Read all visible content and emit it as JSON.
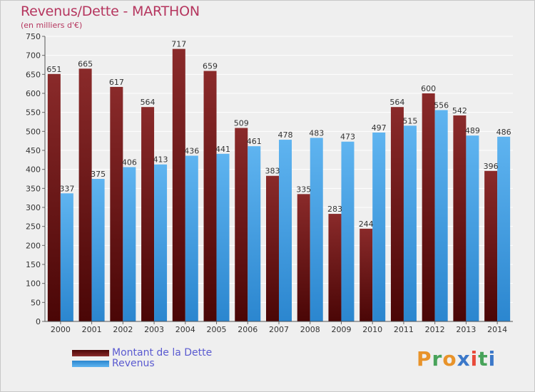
{
  "header": {
    "title": "Revenus/Dette - MARTHON",
    "subtitle": "(en milliers d'€)"
  },
  "legend": {
    "items": [
      {
        "label": "Montant de la Dette",
        "color": "#7b1515"
      },
      {
        "label": "Revenus",
        "color": "#3d9ee6"
      }
    ]
  },
  "logo": {
    "letters": [
      "P",
      "r",
      "o",
      "x",
      "i",
      "t",
      "i"
    ],
    "colors": [
      "#e8932a",
      "#48a35a",
      "#e8932a",
      "#3b78c9",
      "#e84a3a",
      "#48a35a",
      "#3b78c9"
    ]
  },
  "colors": {
    "dette": "#7b1515",
    "revenus": "#3d9ee6",
    "title": "#b5355e",
    "background": "#efefef"
  },
  "chart_data": {
    "type": "bar",
    "title": "Revenus/Dette - MARTHON",
    "subtitle": "(en milliers d'€)",
    "categories": [
      "2000",
      "2001",
      "2002",
      "2003",
      "2004",
      "2005",
      "2006",
      "2007",
      "2008",
      "2009",
      "2010",
      "2011",
      "2012",
      "2013",
      "2014"
    ],
    "series": [
      {
        "name": "Montant de la Dette",
        "values": [
          651,
          665,
          617,
          564,
          717,
          659,
          509,
          383,
          335,
          283,
          244,
          564,
          600,
          542,
          396
        ]
      },
      {
        "name": "Revenus",
        "values": [
          337,
          375,
          406,
          413,
          436,
          441,
          461,
          478,
          483,
          473,
          497,
          515,
          556,
          489,
          486
        ]
      }
    ],
    "ylim": [
      0,
      750
    ],
    "yticks": [
      0,
      50,
      100,
      150,
      200,
      250,
      300,
      350,
      400,
      450,
      500,
      550,
      600,
      650,
      700,
      750
    ],
    "grid": true,
    "legend_position": "bottom-left"
  }
}
